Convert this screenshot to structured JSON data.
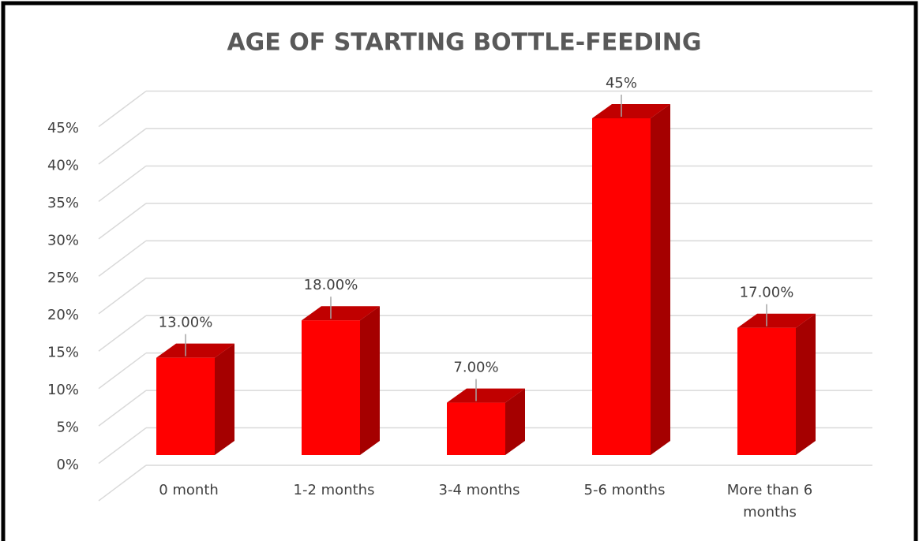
{
  "chart_data": {
    "type": "bar3d",
    "title": "AGE OF STARTING BOTTLE-FEEDING",
    "categories": [
      "0 month",
      "1-2 months",
      "3-4 months",
      "5-6 months",
      "More than 6 months"
    ],
    "values": [
      13,
      18,
      7,
      45,
      17
    ],
    "value_labels": [
      "13.00%",
      "18.00%",
      "7.00%",
      "45%",
      "17.00%"
    ],
    "color": "#ff0000",
    "ylim": [
      0,
      50
    ],
    "yticks": [
      {
        "value": 0,
        "label": "0%"
      },
      {
        "value": 5,
        "label": "5%"
      },
      {
        "value": 10,
        "label": "10%"
      },
      {
        "value": 15,
        "label": "15%"
      },
      {
        "value": 20,
        "label": "20%"
      },
      {
        "value": 25,
        "label": "25%"
      },
      {
        "value": 30,
        "label": "30%"
      },
      {
        "value": 35,
        "label": "35%"
      },
      {
        "value": 40,
        "label": "40%"
      },
      {
        "value": 45,
        "label": "45%"
      }
    ],
    "grid": true
  }
}
